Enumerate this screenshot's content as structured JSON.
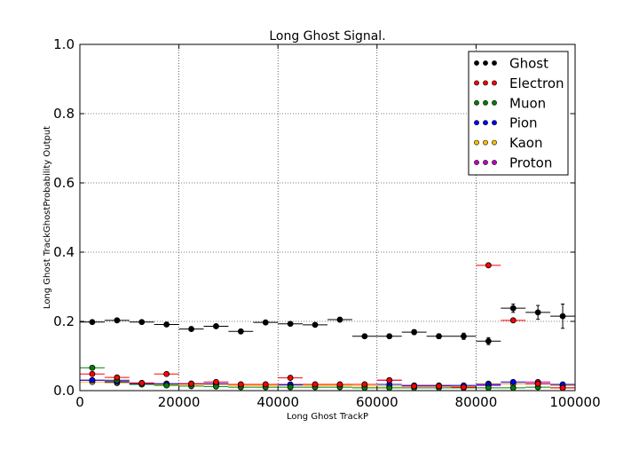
{
  "chart_data": {
    "type": "scatter",
    "title": "Long Ghost Signal.",
    "xlabel": "Long Ghost TrackP",
    "ylabel": "Long Ghost TrackGhostProbability Output",
    "xlim": [
      0,
      100000
    ],
    "ylim": [
      0,
      1.0
    ],
    "grid": true,
    "legend_position": "top-right",
    "x_ticks": [
      0,
      20000,
      40000,
      60000,
      80000,
      100000
    ],
    "x_tick_labels": [
      "0",
      "20000",
      "40000",
      "60000",
      "80000",
      "100000"
    ],
    "y_ticks": [
      0,
      0.2,
      0.4,
      0.6,
      0.8,
      1.0
    ],
    "y_tick_labels": [
      "0.0",
      "0.2",
      "0.4",
      "0.6",
      "0.8",
      "1.0"
    ],
    "bin_half_width": 2500,
    "x": [
      2500,
      7500,
      12500,
      17500,
      22500,
      27500,
      32500,
      37500,
      42500,
      47500,
      52500,
      57500,
      62500,
      67500,
      72500,
      77500,
      82500,
      87500,
      92500,
      97500
    ],
    "series": [
      {
        "name": "Ghost",
        "color": "#000000",
        "values": [
          0.198,
          0.203,
          0.198,
          0.191,
          0.178,
          0.186,
          0.171,
          0.197,
          0.193,
          0.19,
          0.205,
          0.157,
          0.157,
          0.169,
          0.157,
          0.157,
          0.143,
          0.238,
          0.226,
          0.215
        ],
        "errors": [
          0.003,
          0.003,
          0.003,
          0.003,
          0.003,
          0.004,
          0.004,
          0.004,
          0.005,
          0.005,
          0.006,
          0.006,
          0.006,
          0.007,
          0.007,
          0.009,
          0.01,
          0.012,
          0.02,
          0.035
        ]
      },
      {
        "name": "Electron",
        "color": "#ff0000",
        "values": [
          0.048,
          0.038,
          0.022,
          0.048,
          0.02,
          0.025,
          0.018,
          0.018,
          0.037,
          0.018,
          0.018,
          0.018,
          0.03,
          0.013,
          0.013,
          0.01,
          0.362,
          0.203,
          0.02,
          0.008
        ],
        "errors": [
          0,
          0,
          0,
          0,
          0,
          0,
          0,
          0,
          0,
          0,
          0,
          0,
          0,
          0,
          0,
          0,
          0,
          0,
          0,
          0
        ]
      },
      {
        "name": "Muon",
        "color": "#008000",
        "values": [
          0.066,
          0.03,
          0.018,
          0.015,
          0.013,
          0.012,
          0.01,
          0.01,
          0.01,
          0.01,
          0.01,
          0.008,
          0.008,
          0.008,
          0.008,
          0.008,
          0.008,
          0.008,
          0.01,
          0.008
        ],
        "errors": [
          0,
          0,
          0,
          0,
          0,
          0,
          0,
          0,
          0,
          0,
          0,
          0,
          0,
          0,
          0,
          0,
          0,
          0,
          0,
          0
        ]
      },
      {
        "name": "Pion",
        "color": "#0000ff",
        "values": [
          0.03,
          0.025,
          0.02,
          0.02,
          0.02,
          0.02,
          0.018,
          0.018,
          0.017,
          0.018,
          0.018,
          0.018,
          0.018,
          0.015,
          0.015,
          0.015,
          0.018,
          0.025,
          0.02,
          0.018
        ],
        "errors": [
          0,
          0,
          0,
          0,
          0,
          0,
          0,
          0,
          0,
          0,
          0,
          0,
          0,
          0,
          0,
          0,
          0,
          0,
          0,
          0
        ]
      },
      {
        "name": "Kaon",
        "color": "#ffbf00",
        "values": [
          0.025,
          0.022,
          0.018,
          0.018,
          0.018,
          0.018,
          0.015,
          0.015,
          0.015,
          0.015,
          0.015,
          0.013,
          0.013,
          0.013,
          0.013,
          0.013,
          0.02,
          0.02,
          0.02,
          0.015
        ],
        "errors": [
          0,
          0,
          0,
          0,
          0,
          0,
          0,
          0,
          0,
          0,
          0,
          0,
          0,
          0,
          0,
          0,
          0,
          0,
          0,
          0
        ]
      },
      {
        "name": "Proton",
        "color": "#bf00bf",
        "values": [
          0.03,
          0.028,
          0.022,
          0.02,
          0.02,
          0.02,
          0.018,
          0.018,
          0.018,
          0.018,
          0.018,
          0.018,
          0.03,
          0.013,
          0.013,
          0.013,
          0.015,
          0.02,
          0.025,
          0.015
        ],
        "errors": [
          0,
          0,
          0,
          0,
          0,
          0,
          0,
          0,
          0,
          0,
          0,
          0,
          0,
          0,
          0,
          0,
          0,
          0,
          0,
          0
        ]
      }
    ]
  }
}
